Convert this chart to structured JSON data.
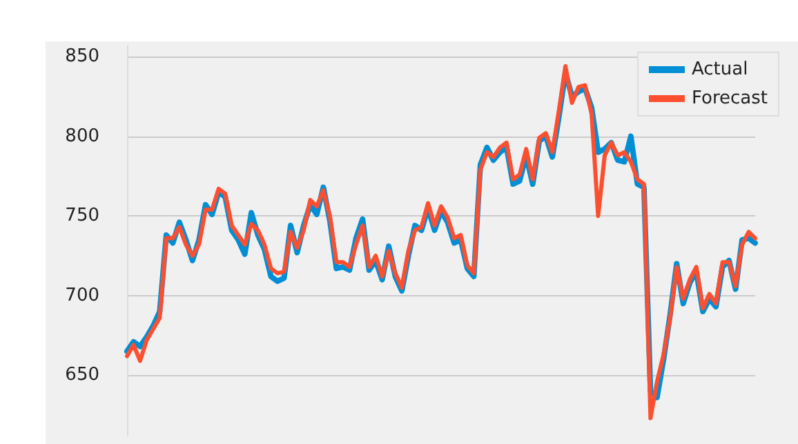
{
  "chart_data": {
    "type": "line",
    "categories": [
      null,
      null,
      null,
      null,
      null,
      null,
      null,
      null,
      null,
      null,
      null,
      null,
      null,
      null,
      null,
      null,
      null,
      null,
      null,
      null,
      null,
      null,
      null,
      null,
      null,
      null,
      null,
      null,
      null,
      null,
      null,
      null,
      null,
      null,
      null,
      null,
      null,
      null,
      null,
      null,
      null,
      null,
      null,
      null,
      null,
      null,
      null,
      null,
      null,
      null,
      null,
      null,
      null,
      null,
      null,
      null,
      null,
      null,
      null,
      null,
      null,
      null,
      null,
      null,
      null,
      null,
      null,
      null,
      null,
      null,
      null,
      null,
      null,
      null,
      null,
      null,
      null,
      null,
      null,
      null,
      null,
      null,
      null,
      null,
      null,
      null,
      null,
      null,
      null,
      null,
      null,
      null,
      null,
      null,
      null,
      null,
      null
    ],
    "series": [
      {
        "name": "Actual",
        "color": "#008fd5",
        "values": [
          665,
          671,
          668,
          674,
          681,
          690,
          738,
          733,
          746,
          735,
          722,
          735,
          757,
          751,
          765,
          762,
          741,
          735,
          726,
          752,
          738,
          729,
          712,
          709,
          711,
          744,
          727,
          744,
          757,
          751,
          768,
          747,
          717,
          718,
          716,
          736,
          748,
          716,
          722,
          710,
          731,
          712,
          703,
          725,
          744,
          741,
          755,
          741,
          753,
          746,
          733,
          735,
          717,
          712,
          782,
          793,
          785,
          790,
          793,
          770,
          772,
          788,
          770,
          797,
          800,
          787,
          812,
          840,
          825,
          828,
          830,
          818,
          790,
          792,
          796,
          785,
          784,
          800,
          770,
          768,
          640,
          636,
          660,
          688,
          720,
          695,
          708,
          715,
          690,
          698,
          693,
          718,
          722,
          704,
          735,
          736,
          733
        ]
      },
      {
        "name": "Forecast",
        "color": "#fc4f30",
        "values": [
          662,
          669,
          659,
          672,
          679,
          686,
          736,
          736,
          743,
          732,
          725,
          732,
          754,
          754,
          767,
          764,
          744,
          738,
          732,
          745,
          741,
          732,
          717,
          714,
          715,
          740,
          730,
          741,
          760,
          756,
          766,
          750,
          721,
          721,
          718,
          732,
          744,
          718,
          725,
          712,
          728,
          714,
          705,
          728,
          741,
          743,
          758,
          744,
          756,
          749,
          736,
          738,
          719,
          714,
          779,
          790,
          787,
          793,
          796,
          773,
          776,
          792,
          773,
          799,
          802,
          790,
          816,
          844,
          821,
          831,
          832,
          814,
          750,
          788,
          796,
          788,
          790,
          784,
          773,
          770,
          623,
          646,
          663,
          686,
          718,
          698,
          710,
          718,
          692,
          701,
          695,
          721,
          721,
          706,
          732,
          740,
          736
        ]
      }
    ],
    "ylim": [
      612,
      857
    ],
    "yticks": [
      650,
      700,
      750,
      800,
      850
    ],
    "grid": "y",
    "legend": "top right",
    "tick_labels": "y",
    "line_style": "solid"
  }
}
